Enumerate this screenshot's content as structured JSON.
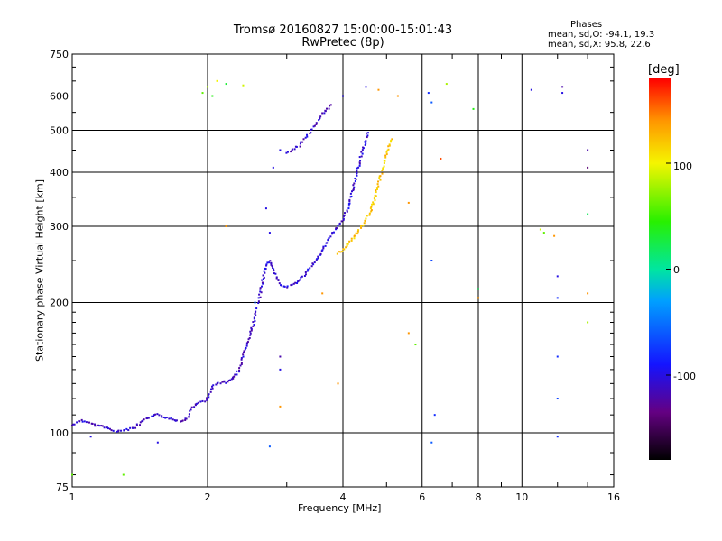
{
  "header": {
    "title_line1": "Tromsø 20160827 15:00:00-15:01:43",
    "title_line2": "RwPretec (8p)",
    "stats_title": "Phases",
    "stats_o": "mean, sd,O: -94.1, 19.3",
    "stats_x": "mean, sd,X:  95.8, 22.6"
  },
  "colorbar": {
    "unit": "[deg]",
    "min": -180,
    "max": 180,
    "tick_labels": [
      "100",
      "0",
      "-100"
    ]
  },
  "chart_data": {
    "type": "scatter",
    "title": "Tromsø 20160827 15:00:00-15:01:43",
    "subtitle": "RwPretec (8p)",
    "xlabel": "Frequency [MHz]",
    "ylabel": "Stationary phase Virtual Height [km]",
    "x_scale": "log",
    "y_scale": "log",
    "xlim": [
      1,
      16
    ],
    "ylim": [
      75,
      750
    ],
    "x_ticks": [
      1,
      2,
      4,
      6,
      8,
      10,
      16
    ],
    "x_tick_labels": [
      "1",
      "2",
      "4",
      "6",
      "8",
      "10",
      "16"
    ],
    "y_ticks": [
      75,
      100,
      200,
      300,
      400,
      500,
      600,
      750
    ],
    "y_tick_labels": [
      "75",
      "100",
      "200",
      "300",
      "400",
      "500",
      "600",
      "750"
    ],
    "grid": true,
    "color_by": "phase_deg",
    "traces": [
      {
        "name": "",
        "phase": -110,
        "points": [
          [
            1.0,
            104
          ],
          [
            1.05,
            107
          ],
          [
            1.1,
            105
          ],
          [
            1.18,
            103
          ],
          [
            1.25,
            101
          ],
          [
            1.3,
            101
          ],
          [
            1.38,
            103
          ],
          [
            1.45,
            107
          ],
          [
            1.5,
            109
          ],
          [
            1.55,
            110
          ],
          [
            1.6,
            109
          ],
          [
            1.65,
            108
          ],
          [
            1.7,
            107
          ],
          [
            1.75,
            106
          ],
          [
            1.8,
            108
          ],
          [
            1.85,
            114
          ],
          [
            1.9,
            117
          ],
          [
            1.95,
            118
          ],
          [
            2.0,
            120
          ],
          [
            2.05,
            128
          ],
          [
            2.1,
            130
          ],
          [
            2.15,
            131
          ],
          [
            2.2,
            131
          ],
          [
            2.25,
            132
          ],
          [
            2.3,
            135
          ],
          [
            2.35,
            140
          ],
          [
            2.4,
            150
          ],
          [
            2.45,
            160
          ],
          [
            2.5,
            172
          ],
          [
            2.55,
            185
          ],
          [
            2.58,
            195
          ]
        ]
      },
      {
        "name": "",
        "phase": -105,
        "points": [
          [
            2.6,
            200
          ],
          [
            2.65,
            225
          ],
          [
            2.7,
            245
          ],
          [
            2.75,
            250
          ],
          [
            2.8,
            240
          ],
          [
            2.85,
            228
          ],
          [
            2.9,
            220
          ],
          [
            3.0,
            218
          ],
          [
            3.1,
            220
          ],
          [
            3.2,
            225
          ],
          [
            3.3,
            232
          ],
          [
            3.4,
            242
          ],
          [
            3.5,
            252
          ],
          [
            3.6,
            264
          ],
          [
            3.7,
            278
          ],
          [
            3.8,
            290
          ],
          [
            3.9,
            300
          ],
          [
            4.0,
            310
          ],
          [
            4.1,
            330
          ],
          [
            4.2,
            360
          ],
          [
            4.3,
            400
          ],
          [
            4.4,
            440
          ],
          [
            4.5,
            475
          ],
          [
            4.55,
            500
          ]
        ]
      },
      {
        "name": "",
        "phase": -110,
        "points": [
          [
            3.0,
            445
          ],
          [
            3.2,
            460
          ],
          [
            3.4,
            500
          ],
          [
            3.6,
            545
          ],
          [
            3.8,
            575
          ]
        ]
      },
      {
        "name": "",
        "phase": 120,
        "points": [
          [
            3.9,
            260
          ],
          [
            4.0,
            265
          ],
          [
            4.1,
            272
          ],
          [
            4.2,
            280
          ],
          [
            4.3,
            290
          ],
          [
            4.4,
            300
          ],
          [
            4.5,
            310
          ],
          [
            4.6,
            325
          ],
          [
            4.7,
            345
          ],
          [
            4.8,
            375
          ],
          [
            4.9,
            410
          ],
          [
            5.0,
            440
          ],
          [
            5.1,
            470
          ],
          [
            5.2,
            480
          ]
        ]
      }
    ],
    "extra_points": [
      {
        "x": 1.95,
        "y": 610,
        "phase": 60
      },
      {
        "x": 2.0,
        "y": 630,
        "phase": 80
      },
      {
        "x": 2.05,
        "y": 600,
        "phase": 40
      },
      {
        "x": 2.1,
        "y": 650,
        "phase": 100
      },
      {
        "x": 2.2,
        "y": 640,
        "phase": 30
      },
      {
        "x": 2.4,
        "y": 635,
        "phase": 90
      },
      {
        "x": 2.8,
        "y": 410,
        "phase": -100
      },
      {
        "x": 2.9,
        "y": 450,
        "phase": -100
      },
      {
        "x": 2.7,
        "y": 330,
        "phase": -100
      },
      {
        "x": 2.75,
        "y": 290,
        "phase": -100
      },
      {
        "x": 2.9,
        "y": 150,
        "phase": -120
      },
      {
        "x": 2.9,
        "y": 140,
        "phase": -100
      },
      {
        "x": 2.9,
        "y": 115,
        "phase": 140
      },
      {
        "x": 2.75,
        "y": 93,
        "phase": -60
      },
      {
        "x": 2.2,
        "y": 300,
        "phase": 140
      },
      {
        "x": 3.6,
        "y": 210,
        "phase": 140
      },
      {
        "x": 3.9,
        "y": 130,
        "phase": 140
      },
      {
        "x": 4.0,
        "y": 600,
        "phase": -100
      },
      {
        "x": 4.5,
        "y": 630,
        "phase": -100
      },
      {
        "x": 4.8,
        "y": 620,
        "phase": 140
      },
      {
        "x": 5.3,
        "y": 600,
        "phase": 140
      },
      {
        "x": 5.6,
        "y": 340,
        "phase": 140
      },
      {
        "x": 5.6,
        "y": 170,
        "phase": 140
      },
      {
        "x": 5.8,
        "y": 160,
        "phase": 60
      },
      {
        "x": 6.2,
        "y": 610,
        "phase": -80
      },
      {
        "x": 6.3,
        "y": 580,
        "phase": -60
      },
      {
        "x": 6.6,
        "y": 430,
        "phase": 160
      },
      {
        "x": 6.3,
        "y": 250,
        "phase": -70
      },
      {
        "x": 6.4,
        "y": 110,
        "phase": -80
      },
      {
        "x": 6.3,
        "y": 95,
        "phase": -60
      },
      {
        "x": 6.8,
        "y": 640,
        "phase": 80
      },
      {
        "x": 7.8,
        "y": 560,
        "phase": 40
      },
      {
        "x": 8.0,
        "y": 215,
        "phase": 20
      },
      {
        "x": 8.0,
        "y": 205,
        "phase": 140
      },
      {
        "x": 10.5,
        "y": 620,
        "phase": -100
      },
      {
        "x": 11.0,
        "y": 295,
        "phase": 90
      },
      {
        "x": 11.2,
        "y": 290,
        "phase": 60
      },
      {
        "x": 11.8,
        "y": 285,
        "phase": 140
      },
      {
        "x": 12.0,
        "y": 230,
        "phase": -100
      },
      {
        "x": 12.0,
        "y": 205,
        "phase": -80
      },
      {
        "x": 12.0,
        "y": 150,
        "phase": -80
      },
      {
        "x": 12.3,
        "y": 630,
        "phase": -120
      },
      {
        "x": 12.3,
        "y": 610,
        "phase": -100
      },
      {
        "x": 12.0,
        "y": 120,
        "phase": -70
      },
      {
        "x": 12.0,
        "y": 98,
        "phase": -80
      },
      {
        "x": 14.0,
        "y": 450,
        "phase": -120
      },
      {
        "x": 14.0,
        "y": 410,
        "phase": -140
      },
      {
        "x": 14.0,
        "y": 320,
        "phase": 20
      },
      {
        "x": 14.0,
        "y": 210,
        "phase": 140
      },
      {
        "x": 14.0,
        "y": 180,
        "phase": 80
      },
      {
        "x": 1.0,
        "y": 80,
        "phase": 60
      },
      {
        "x": 1.3,
        "y": 80,
        "phase": 60
      },
      {
        "x": 1.1,
        "y": 98,
        "phase": -100
      },
      {
        "x": 1.55,
        "y": 95,
        "phase": -100
      },
      {
        "x": 2.55,
        "y": 200,
        "phase": -60
      }
    ]
  }
}
